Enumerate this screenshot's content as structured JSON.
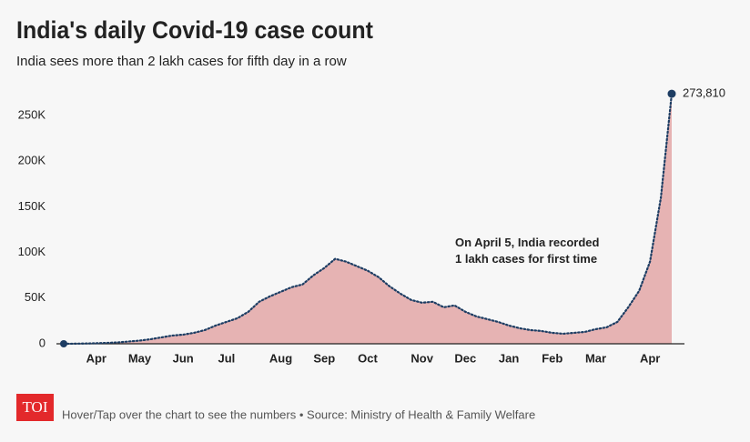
{
  "chart_data": {
    "type": "area",
    "title": "India's daily Covid-19 case count",
    "subtitle": "India sees more than 2 lakh cases for fifth day in a row",
    "annotation": "On April 5, India recorded\n1 lakh cases for first time",
    "source": "Hover/Tap over the chart to see the numbers • Source: Ministry of Health & Family Welfare",
    "logo": "TOI",
    "categories": [
      null,
      null,
      null,
      "Apr",
      null,
      null,
      null,
      "May",
      null,
      null,
      null,
      "Jun",
      null,
      null,
      null,
      "Jul",
      null,
      null,
      null,
      null,
      "Aug",
      null,
      null,
      null,
      "Sep",
      null,
      null,
      null,
      "Oct",
      null,
      null,
      null,
      null,
      "Nov",
      null,
      null,
      null,
      "Dec",
      null,
      null,
      null,
      "Jan",
      null,
      null,
      null,
      "Feb",
      null,
      null,
      null,
      "Mar",
      null,
      null,
      null,
      null,
      "Apr",
      null,
      null
    ],
    "values": [
      0,
      100,
      300,
      600,
      1000,
      1500,
      2500,
      3500,
      5000,
      7000,
      9000,
      10000,
      12000,
      15000,
      20000,
      24000,
      28000,
      35000,
      46000,
      52000,
      57000,
      62000,
      65000,
      75000,
      83000,
      93000,
      90000,
      85000,
      80000,
      73000,
      63000,
      55000,
      48000,
      45000,
      46000,
      40000,
      42000,
      35000,
      30000,
      27000,
      24000,
      20000,
      17000,
      15000,
      14000,
      12000,
      11000,
      12000,
      13000,
      16000,
      18000,
      24000,
      40000,
      58000,
      90000,
      160000,
      273810
    ],
    "value_labels": [
      null,
      null,
      null,
      null,
      null,
      null,
      null,
      null,
      null,
      null,
      null,
      null,
      null,
      null,
      null,
      null,
      null,
      null,
      null,
      null,
      null,
      null,
      null,
      null,
      null,
      null,
      null,
      null,
      null,
      null,
      null,
      null,
      null,
      null,
      null,
      null,
      null,
      null,
      null,
      null,
      null,
      null,
      null,
      null,
      null,
      null,
      null,
      null,
      null,
      null,
      null,
      null,
      null,
      null,
      null,
      null,
      "273,810"
    ],
    "color": "#e6b3b3",
    "line_color": "#1d3d63",
    "ylim": [
      0,
      250000
    ],
    "yticks": [
      0,
      {
        "value": 50000,
        "label": "50K"
      },
      {
        "value": 100000,
        "label": "100K"
      },
      {
        "value": 150000,
        "label": "150K"
      },
      {
        "value": 200000,
        "label": "200K"
      },
      {
        "value": 250000,
        "label": "250K"
      }
    ],
    "grid": false
  }
}
